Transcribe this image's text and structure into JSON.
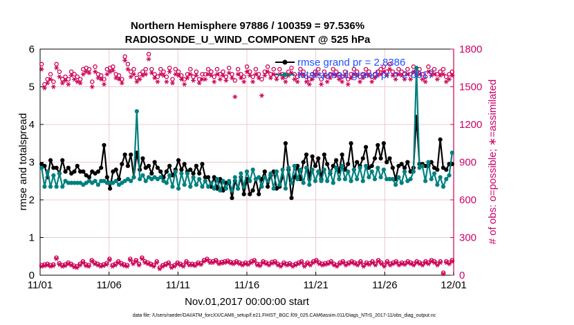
{
  "chart_data": {
    "type": "line",
    "title": "Northern Hemisphere 97886 / 100359 = 97.536%",
    "subtitle": "RADIOSONDE_U_WIND_COMPONENT @ 525 hPa",
    "xlabel": "Nov.01,2017 00:00:00 start",
    "ylabel": "rmse and totalspread",
    "ylabel_right": "# of obs: o=possible; ∗=assimilated",
    "xlim": [
      0,
      30
    ],
    "ylim": [
      0,
      6
    ],
    "ylim_right": [
      0,
      1800
    ],
    "x_ticks": [
      0,
      5,
      10,
      15,
      20,
      25,
      30
    ],
    "x_tick_labels": [
      "11/01",
      "11/06",
      "11/11",
      "11/16",
      "11/21",
      "11/26",
      "12/01"
    ],
    "y_ticks": [
      "0",
      "1",
      "2",
      "3",
      "4",
      "5",
      "6"
    ],
    "y_ticks_right": [
      "0",
      "300",
      "600",
      "900",
      "1200",
      "1500",
      "1800"
    ],
    "footer": "data file: /Users/raeder/DAI/ATM_forcXX/CAM6_setup/f.e21.FHIST_BGC.f09_025.CAM6assim.011/Diags_NTrS_2017-11/obs_diag_output.nc",
    "colors": {
      "rmse": "#000000",
      "spread": "#008080",
      "obs": "#cc0055",
      "grid": "#e8c8d0"
    },
    "series": [
      {
        "name": "rmse",
        "legend": "rmse grand pr = 2.8386",
        "axis": "left",
        "values": [
          2.95,
          2.9,
          2.6,
          3.05,
          2.85,
          2.85,
          2.7,
          3.05,
          2.75,
          2.85,
          2.7,
          2.75,
          2.9,
          2.75,
          2.75,
          2.65,
          2.6,
          2.75,
          2.7,
          2.75,
          2.85,
          3.45,
          2.6,
          2.3,
          2.75,
          2.8,
          2.55,
          2.95,
          3.2,
          2.9,
          3.2,
          2.6,
          3.25,
          2.8,
          3.1,
          2.85,
          2.9,
          2.7,
          3.0,
          2.85,
          2.75,
          2.6,
          2.75,
          2.9,
          2.65,
          2.8,
          3.05,
          2.8,
          2.95,
          2.75,
          2.8,
          2.7,
          2.9,
          2.7,
          2.95,
          2.6,
          2.6,
          2.35,
          2.6,
          2.3,
          2.55,
          2.25,
          2.45,
          2.45,
          2.05,
          2.5,
          2.3,
          2.6,
          2.15,
          2.55,
          2.15,
          2.25,
          2.55,
          2.15,
          2.55,
          2.75,
          2.35,
          2.65,
          2.75,
          2.3,
          2.35,
          2.6,
          3.5,
          2.8,
          2.05,
          2.6,
          2.9,
          2.55,
          3.0,
          3.2,
          2.55,
          3.15,
          2.9,
          3.1,
          2.55,
          3.2,
          2.95,
          2.7,
          2.9,
          3.05,
          2.75,
          3.2,
          2.8,
          2.95,
          3.5,
          2.8,
          3.0,
          2.9,
          3.1,
          3.4,
          2.85,
          2.9,
          3.1,
          3.45,
          3.1,
          3.5,
          3.0,
          3.1,
          2.85,
          2.55,
          2.9,
          2.95,
          2.85,
          3.0,
          2.75,
          2.85,
          4.2,
          2.95,
          2.95,
          2.9,
          2.9,
          3.0,
          2.85,
          2.8,
          3.6,
          2.85,
          2.8,
          2.95,
          2.95
        ]
      },
      {
        "name": "totalspread",
        "legend": "totalspread grand pr = 2.6017",
        "axis": "left",
        "values": [
          2.85,
          2.35,
          2.75,
          2.35,
          2.65,
          2.35,
          2.7,
          2.35,
          2.5,
          2.45,
          2.45,
          2.45,
          2.45,
          2.45,
          2.4,
          2.45,
          2.5,
          2.45,
          2.5,
          2.4,
          2.5,
          2.5,
          2.45,
          2.45,
          2.45,
          2.5,
          2.4,
          2.45,
          2.5,
          2.55,
          2.5,
          2.6,
          4.35,
          2.55,
          2.65,
          2.5,
          2.6,
          2.55,
          2.6,
          2.55,
          2.6,
          2.5,
          2.45,
          2.65,
          2.35,
          2.75,
          2.3,
          2.7,
          2.4,
          2.7,
          2.35,
          2.6,
          2.4,
          2.55,
          2.35,
          2.5,
          2.35,
          2.45,
          2.3,
          2.55,
          2.25,
          2.5,
          2.3,
          2.5,
          2.25,
          2.6,
          2.3,
          2.7,
          2.35,
          2.75,
          2.5,
          2.8,
          2.55,
          2.6,
          2.35,
          2.6,
          2.5,
          2.7,
          2.3,
          2.75,
          2.4,
          2.8,
          2.3,
          2.85,
          2.45,
          2.9,
          2.55,
          2.8,
          2.45,
          2.85,
          2.4,
          2.8,
          2.5,
          2.75,
          2.5,
          2.8,
          2.5,
          2.75,
          2.45,
          2.85,
          2.55,
          2.9,
          2.55,
          2.75,
          2.5,
          2.8,
          2.55,
          2.85,
          2.5,
          2.9,
          2.6,
          2.75,
          2.55,
          2.85,
          2.6,
          2.8,
          2.55,
          2.55,
          2.55,
          2.4,
          2.6,
          2.45,
          2.75,
          2.5,
          2.55,
          2.75,
          5.5,
          2.85,
          2.9,
          2.5,
          3.0,
          2.55,
          2.7,
          2.4,
          2.6,
          2.35,
          2.55,
          2.65,
          3.25
        ]
      },
      {
        "name": "obs_possible",
        "axis": "right",
        "marker": "o",
        "values": [
          1680,
          1520,
          1560,
          1600,
          1540,
          1680,
          1620,
          1560,
          1580,
          1560,
          1620,
          1600,
          1580,
          1560,
          1640,
          1650,
          1640,
          1540,
          1660,
          1600,
          1590,
          1560,
          1640,
          1650,
          1660,
          1600,
          1590,
          1560,
          1740,
          1680,
          1620,
          1640,
          1570,
          1600,
          1620,
          1640,
          1760,
          1640,
          1600,
          1580,
          1640,
          1620,
          1580,
          1650,
          1560,
          1640,
          1620,
          1590,
          1560,
          1600,
          1640,
          1580,
          1620,
          1560,
          1600,
          1600,
          1640,
          1620,
          1580,
          1640,
          1600,
          1620,
          1580,
          1650,
          1600,
          1550,
          1640,
          1600,
          1580,
          1660,
          1620,
          1580,
          1640,
          1600,
          1560,
          1620,
          1660,
          1600,
          1640,
          1590,
          1640,
          1600,
          1580,
          1620,
          1650,
          1600,
          1580,
          1640,
          1620,
          1580,
          1560,
          1600,
          1620,
          1640,
          1560,
          1620,
          1580,
          1600,
          1640,
          1620,
          1600,
          1580,
          1620,
          1560,
          1600,
          1640,
          1620,
          1580,
          1600,
          1640,
          1620,
          1580,
          1600,
          1620,
          1640,
          1660,
          1620,
          1680,
          1620,
          1600,
          1640,
          1620,
          1600,
          1640,
          1600,
          1660,
          1620,
          1640,
          1600,
          1580,
          1660,
          1620,
          1640,
          1600,
          1620,
          1640,
          1580,
          1600,
          1620
        ]
      },
      {
        "name": "obs_assimilated",
        "axis": "right",
        "marker": "*",
        "values": [
          1640,
          1490,
          1530,
          1560,
          1500,
          1650,
          1580,
          1530,
          1550,
          1520,
          1590,
          1560,
          1540,
          1530,
          1600,
          1620,
          1610,
          1500,
          1620,
          1570,
          1560,
          1520,
          1600,
          1620,
          1630,
          1570,
          1560,
          1530,
          1710,
          1640,
          1580,
          1600,
          1540,
          1560,
          1590,
          1600,
          1720,
          1610,
          1570,
          1540,
          1600,
          1590,
          1540,
          1620,
          1530,
          1600,
          1590,
          1560,
          1520,
          1570,
          1600,
          1550,
          1590,
          1530,
          1560,
          1560,
          1600,
          1590,
          1540,
          1600,
          1560,
          1590,
          1550,
          1610,
          1570,
          1420,
          1600,
          1570,
          1540,
          1620,
          1590,
          1540,
          1600,
          1570,
          1430,
          1590,
          1620,
          1570,
          1600,
          1560,
          1600,
          1570,
          1540,
          1590,
          1610,
          1560,
          1540,
          1600,
          1590,
          1540,
          1520,
          1560,
          1590,
          1600,
          1520,
          1590,
          1540,
          1570,
          1600,
          1590,
          1560,
          1540,
          1590,
          1520,
          1570,
          1600,
          1590,
          1540,
          1570,
          1600,
          1590,
          1540,
          1570,
          1590,
          1600,
          1620,
          1590,
          1640,
          1590,
          1560,
          1600,
          1590,
          1560,
          1600,
          1560,
          1620,
          1590,
          1600,
          1560,
          1540,
          1620,
          1590,
          1600,
          1560,
          1590,
          1600,
          1540,
          1560,
          1590
        ]
      },
      {
        "name": "obs_possible_low",
        "axis": "right",
        "marker": "o",
        "values": [
          80,
          85,
          90,
          80,
          85,
          140,
          95,
          80,
          85,
          100,
          90,
          75,
          70,
          90,
          110,
          85,
          80,
          120,
          100,
          90,
          80,
          85,
          95,
          130,
          80,
          90,
          110,
          95,
          85,
          80,
          130,
          100,
          120,
          90,
          140,
          110,
          100,
          90,
          80,
          110,
          60,
          80,
          90,
          100,
          70,
          80,
          100,
          90,
          80,
          110,
          90,
          90,
          85,
          100,
          95,
          120,
          130,
          110,
          110,
          120,
          100,
          105,
          110,
          115,
          105,
          100,
          110,
          100,
          90,
          100,
          95,
          110,
          120,
          90,
          85,
          110,
          100,
          90,
          105,
          110,
          90,
          80,
          100,
          90,
          95,
          80,
          90,
          100,
          110,
          80,
          100,
          90,
          110,
          120,
          100,
          90,
          95,
          100,
          110,
          90,
          80,
          100,
          110,
          90,
          100,
          110,
          100,
          90,
          110,
          80,
          100,
          95,
          110,
          90,
          120,
          100,
          80,
          110,
          90,
          100,
          110,
          90,
          100,
          95,
          110,
          100,
          90,
          110,
          100,
          90,
          110,
          100,
          120,
          110,
          90,
          110,
          20,
          110,
          100,
          120
        ]
      },
      {
        "name": "obs_assimilated_low",
        "axis": "right",
        "marker": "*",
        "values": [
          70,
          75,
          80,
          70,
          75,
          130,
          85,
          70,
          75,
          90,
          80,
          65,
          60,
          80,
          100,
          75,
          70,
          110,
          90,
          80,
          70,
          75,
          85,
          120,
          70,
          80,
          100,
          85,
          75,
          70,
          120,
          90,
          110,
          80,
          130,
          100,
          90,
          80,
          70,
          100,
          50,
          70,
          80,
          90,
          60,
          70,
          90,
          80,
          70,
          100,
          80,
          80,
          75,
          90,
          85,
          110,
          120,
          100,
          100,
          110,
          90,
          95,
          100,
          105,
          95,
          90,
          100,
          90,
          80,
          90,
          85,
          100,
          110,
          80,
          75,
          100,
          90,
          80,
          95,
          100,
          80,
          70,
          90,
          80,
          85,
          70,
          80,
          90,
          100,
          70,
          90,
          80,
          100,
          110,
          90,
          80,
          85,
          90,
          100,
          80,
          70,
          90,
          100,
          80,
          90,
          100,
          90,
          80,
          100,
          70,
          90,
          85,
          100,
          80,
          110,
          90,
          70,
          100,
          80,
          90,
          100,
          80,
          90,
          85,
          100,
          90,
          80,
          100,
          90,
          80,
          100,
          90,
          110,
          100,
          80,
          100,
          10,
          100,
          90,
          110
        ]
      }
    ]
  }
}
